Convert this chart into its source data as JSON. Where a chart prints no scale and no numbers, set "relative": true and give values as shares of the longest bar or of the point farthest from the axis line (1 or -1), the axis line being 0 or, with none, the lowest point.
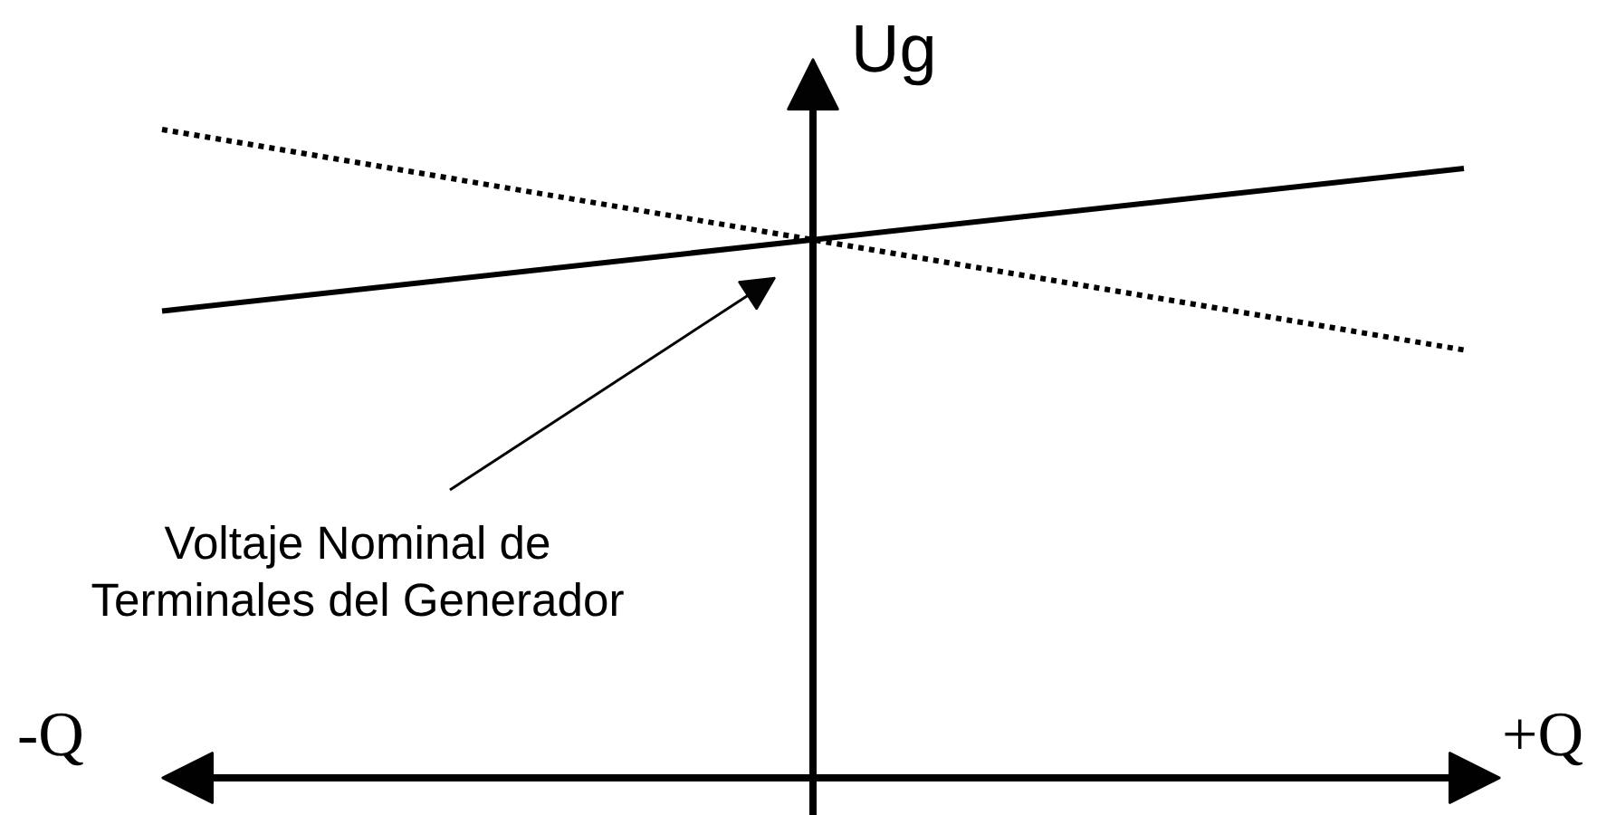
{
  "chart_data": {
    "type": "line",
    "relative": true,
    "ylabel": "Ug",
    "categories": [
      null,
      null,
      null
    ],
    "series": [
      {
        "color": "#000000",
        "line_style": "solid",
        "values": [
          0.72,
          0.83,
          0.94
        ]
      },
      {
        "color": "#000000",
        "line_style": "dotted",
        "values": [
          1.0,
          0.83,
          0.66
        ]
      }
    ],
    "annotations": [
      "-Q",
      "+Q",
      "Voltaje Nominal de Terminales del Generador"
    ]
  }
}
